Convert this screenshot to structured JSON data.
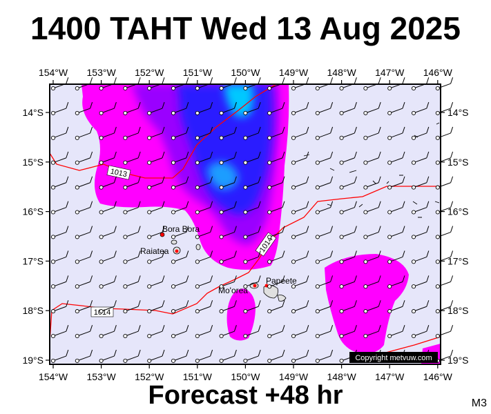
{
  "title": "1400 TAHT Wed 13 Aug 2025",
  "footer": "Forecast +48 hr",
  "model_tag": "M3",
  "copyright": "Copyright metvuw.com",
  "lon_labels": [
    "154°W",
    "153°W",
    "152°W",
    "151°W",
    "150°W",
    "149°W",
    "148°W",
    "147°W",
    "146°W"
  ],
  "lat_labels": [
    "14°S",
    "15°S",
    "16°S",
    "17°S",
    "18°S",
    "19°S"
  ],
  "places": [
    {
      "name": "Bora Bora"
    },
    {
      "name": "Raiatea"
    },
    {
      "name": "Mo'orea"
    },
    {
      "name": "Papeete"
    }
  ],
  "isobars": [
    {
      "label": "1013"
    },
    {
      "label": "1014"
    },
    {
      "label": "1014"
    }
  ],
  "colors": {
    "sea": "#e6e6fa",
    "rain_light": "#ff00ff",
    "rain_moderate": "#9a00ff",
    "rain_heavy": "#2a1bff",
    "rain_very_heavy": "#00c8ff",
    "isobar": "#ff0000",
    "island_marker": "#ff0000"
  }
}
